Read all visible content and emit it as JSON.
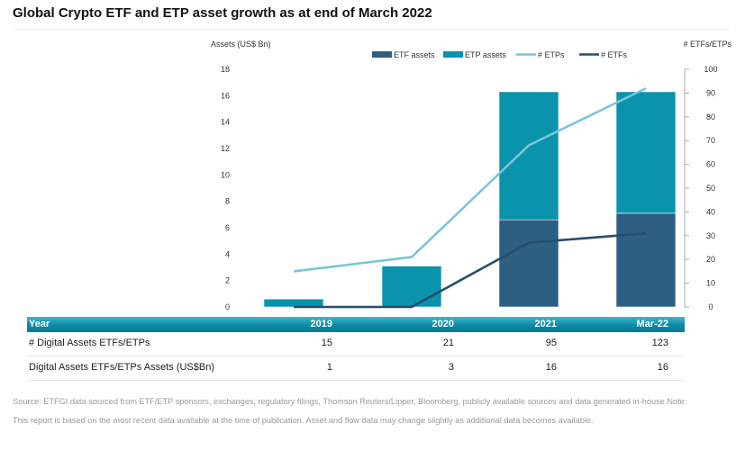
{
  "title": "Global Crypto ETF and ETP asset growth as at end of March 2022",
  "chart_data": {
    "type": "bar",
    "stacked": true,
    "categories": [
      "2019",
      "2020",
      "2021",
      "Mar-22"
    ],
    "series": [
      {
        "name": "ETF assets",
        "kind": "bar",
        "axis": "left",
        "color": "#2c5f82",
        "values": [
          0,
          0,
          6.6,
          7.1
        ]
      },
      {
        "name": "ETP assets",
        "kind": "bar",
        "axis": "left",
        "color": "#0a93ad",
        "values": [
          0.6,
          3.1,
          9.7,
          9.2
        ]
      },
      {
        "name": "# ETPs",
        "kind": "line",
        "axis": "right",
        "color": "#79c6d8",
        "values": [
          15,
          21,
          68,
          92
        ]
      },
      {
        "name": "# ETFs",
        "kind": "line",
        "axis": "right",
        "color": "#264e6b",
        "values": [
          0,
          0,
          27,
          31
        ]
      }
    ],
    "ylabel": "Assets (US$ Bn)",
    "y2label": "# ETFs/ETPs",
    "ylim": [
      0,
      18
    ],
    "yticks": [
      0,
      2,
      4,
      6,
      8,
      10,
      12,
      14,
      16,
      18
    ],
    "y2lim": [
      0,
      100
    ],
    "y2ticks": [
      0,
      10,
      20,
      30,
      40,
      50,
      60,
      70,
      80,
      90,
      100
    ],
    "legend_position": "top",
    "grid": false
  },
  "table": {
    "header": {
      "label": "Year",
      "cols": [
        "2019",
        "2020",
        "2021",
        "Mar-22"
      ]
    },
    "rows": [
      {
        "label": "# Digital Assets ETFs/ETPs",
        "values": [
          "15",
          "21",
          "95",
          "123"
        ]
      },
      {
        "label": "Digital Assets ETFs/ETPs Assets (US$Bn)",
        "values": [
          "1",
          "3",
          "16",
          "16"
        ]
      }
    ]
  },
  "source": "Source: ETFGI data sourced from ETF/ETP sponsors, exchanges, regulatory filings, Thomson Reuters/Lipper, Bloomberg, publicly available sources and data generated in-house.Note: This report is based on the most recent data available at the time of publication. Asset and flow data may change slightly as additional data becomes available."
}
